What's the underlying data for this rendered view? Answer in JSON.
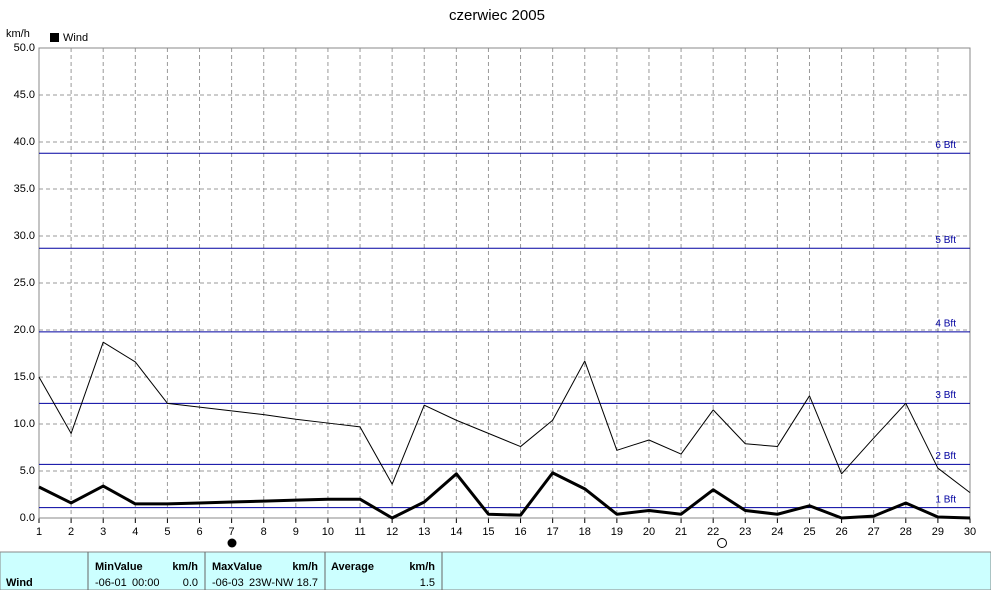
{
  "chart_data": {
    "type": "line",
    "title": "czerwiec 2005",
    "y_unit": "km/h",
    "legend": "top-left",
    "grid": true,
    "x": [
      1,
      2,
      3,
      4,
      5,
      6,
      7,
      8,
      9,
      10,
      11,
      12,
      13,
      14,
      15,
      16,
      17,
      18,
      19,
      20,
      21,
      22,
      23,
      24,
      25,
      26,
      27,
      28,
      29,
      30
    ],
    "xlim": [
      1,
      30
    ],
    "xticks": [
      1,
      2,
      3,
      4,
      5,
      6,
      7,
      8,
      9,
      10,
      11,
      12,
      13,
      14,
      15,
      16,
      17,
      18,
      19,
      20,
      21,
      22,
      23,
      24,
      25,
      26,
      27,
      28,
      29,
      30
    ],
    "ylim": [
      0,
      50
    ],
    "yticks": [
      {
        "value": 0,
        "label": "0.0"
      },
      {
        "value": 5,
        "label": "5.0"
      },
      {
        "value": 10,
        "label": "10.0"
      },
      {
        "value": 15,
        "label": "15.0"
      },
      {
        "value": 20,
        "label": "20.0"
      },
      {
        "value": 25,
        "label": "25.0"
      },
      {
        "value": 30,
        "label": "30.0"
      },
      {
        "value": 35,
        "label": "35.0"
      },
      {
        "value": 40,
        "label": "40.0"
      },
      {
        "value": 45,
        "label": "45.0"
      },
      {
        "value": 50,
        "label": "50.0"
      }
    ],
    "series": [
      {
        "name": "Wind",
        "color": "#000000",
        "line_width": 3,
        "values": [
          3.3,
          1.6,
          3.4,
          1.5,
          1.5,
          1.6,
          1.7,
          1.8,
          1.9,
          2.0,
          2.0,
          0.0,
          1.7,
          4.7,
          0.4,
          0.3,
          4.8,
          3.1,
          0.4,
          0.8,
          0.4,
          3.0,
          0.8,
          0.4,
          1.3,
          0.0,
          0.2,
          1.6,
          0.1,
          0.0
        ]
      },
      {
        "color": "#000000",
        "line_width": 1,
        "values": [
          15.0,
          9.0,
          18.7,
          16.6,
          12.2,
          11.8,
          11.4,
          11.0,
          10.5,
          10.1,
          9.7,
          3.6,
          12.0,
          10.4,
          9.0,
          7.6,
          10.4,
          16.7,
          7.2,
          8.3,
          6.8,
          11.5,
          7.9,
          7.6,
          13.0,
          4.7,
          8.5,
          12.2,
          5.3,
          2.7
        ]
      }
    ],
    "reference_color": "#0000a0",
    "reference_lines": [
      {
        "label": "1 Bft",
        "value": 1.1
      },
      {
        "label": "2 Bft",
        "value": 5.7
      },
      {
        "label": "3 Bft",
        "value": 12.2
      },
      {
        "label": "4 Bft",
        "value": 19.8
      },
      {
        "label": "5 Bft",
        "value": 28.7
      },
      {
        "label": "6 Bft",
        "value": 38.8
      }
    ]
  },
  "summary": {
    "row_label": "Wind",
    "min": {
      "header": "MinValue",
      "unit": "km/h",
      "date": "-06-01",
      "time": "00:00",
      "value": "0.0"
    },
    "max": {
      "header": "MaxValue",
      "unit": "km/h",
      "date": "-06-03",
      "time": "23W-NW",
      "value": "18.7"
    },
    "average": {
      "header": "Average",
      "unit": "km/h",
      "value": "1.5"
    }
  }
}
